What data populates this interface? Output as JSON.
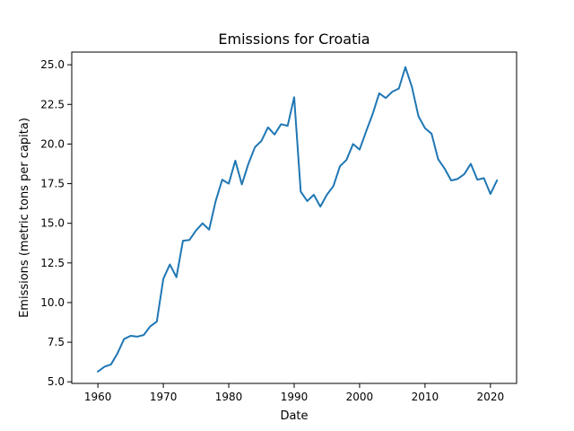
{
  "chart_data": {
    "type": "line",
    "title": "Emissions for Croatia",
    "xlabel": "Date",
    "ylabel": "Emissions (metric tons per capita)",
    "xlim": [
      1956,
      2024
    ],
    "ylim": [
      4.9,
      25.8
    ],
    "x_ticks": [
      1960,
      1970,
      1980,
      1990,
      2000,
      2010,
      2020
    ],
    "y_ticks": [
      5.0,
      7.5,
      10.0,
      12.5,
      15.0,
      17.5,
      20.0,
      22.5,
      25.0
    ],
    "grid": false,
    "line_color": "#1f77b4",
    "x": [
      1960,
      1961,
      1962,
      1963,
      1964,
      1965,
      1966,
      1967,
      1968,
      1969,
      1970,
      1971,
      1972,
      1973,
      1974,
      1975,
      1976,
      1977,
      1978,
      1979,
      1980,
      1981,
      1982,
      1983,
      1984,
      1985,
      1986,
      1987,
      1988,
      1989,
      1990,
      1991,
      1992,
      1993,
      1994,
      1995,
      1996,
      1997,
      1998,
      1999,
      2000,
      2001,
      2002,
      2003,
      2004,
      2005,
      2006,
      2007,
      2008,
      2009,
      2010,
      2011,
      2012,
      2013,
      2014,
      2015,
      2016,
      2017,
      2018,
      2019,
      2020,
      2021
    ],
    "values": [
      5.65,
      5.95,
      6.1,
      6.8,
      7.7,
      7.9,
      7.85,
      7.95,
      8.5,
      8.8,
      11.5,
      12.4,
      11.6,
      13.9,
      13.95,
      14.55,
      15.0,
      14.6,
      16.4,
      17.75,
      17.5,
      18.95,
      17.45,
      18.75,
      19.8,
      20.2,
      21.05,
      20.6,
      21.25,
      21.15,
      22.95,
      17.0,
      16.4,
      16.8,
      16.05,
      16.8,
      17.35,
      18.6,
      19.0,
      20.0,
      19.65,
      20.8,
      21.9,
      23.2,
      22.9,
      23.3,
      23.5,
      24.85,
      23.6,
      21.75,
      21.0,
      20.65,
      19.05,
      18.45,
      17.7,
      17.8,
      18.1,
      18.75,
      17.75,
      17.85,
      16.85,
      17.7
    ]
  }
}
